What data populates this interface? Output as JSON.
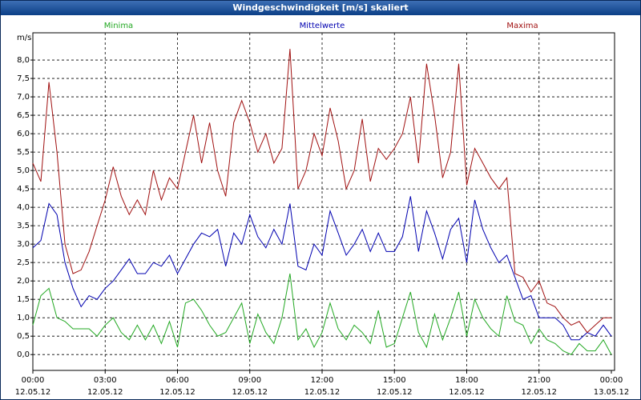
{
  "window": {
    "title": "Windgeschwindigkeit [m/s] skaliert"
  },
  "chart_data": {
    "type": "line",
    "y_unit": "m/s",
    "x": [
      "12.05.12 00:00",
      "12.05.12 00:20",
      "12.05.12 00:40",
      "12.05.12 01:00",
      "12.05.12 01:20",
      "12.05.12 01:40",
      "12.05.12 02:00",
      "12.05.12 02:20",
      "12.05.12 02:40",
      "12.05.12 03:00",
      "12.05.12 03:20",
      "12.05.12 03:40",
      "12.05.12 04:00",
      "12.05.12 04:20",
      "12.05.12 04:40",
      "12.05.12 05:00",
      "12.05.12 05:20",
      "12.05.12 05:40",
      "12.05.12 06:00",
      "12.05.12 06:20",
      "12.05.12 06:40",
      "12.05.12 07:00",
      "12.05.12 07:20",
      "12.05.12 07:40",
      "12.05.12 08:00",
      "12.05.12 08:20",
      "12.05.12 08:40",
      "12.05.12 09:00",
      "12.05.12 09:20",
      "12.05.12 09:40",
      "12.05.12 10:00",
      "12.05.12 10:20",
      "12.05.12 10:40",
      "12.05.12 11:00",
      "12.05.12 11:20",
      "12.05.12 11:40",
      "12.05.12 12:00",
      "12.05.12 12:20",
      "12.05.12 12:40",
      "12.05.12 13:00",
      "12.05.12 13:20",
      "12.05.12 13:40",
      "12.05.12 14:00",
      "12.05.12 14:20",
      "12.05.12 14:40",
      "12.05.12 15:00",
      "12.05.12 15:20",
      "12.05.12 15:40",
      "12.05.12 16:00",
      "12.05.12 16:20",
      "12.05.12 16:40",
      "12.05.12 17:00",
      "12.05.12 17:20",
      "12.05.12 17:40",
      "12.05.12 18:00",
      "12.05.12 18:20",
      "12.05.12 18:40",
      "12.05.12 19:00",
      "12.05.12 19:20",
      "12.05.12 19:40",
      "12.05.12 20:00",
      "12.05.12 20:20",
      "12.05.12 20:40",
      "12.05.12 21:00",
      "12.05.12 21:20",
      "12.05.12 21:40",
      "12.05.12 22:00",
      "12.05.12 22:20",
      "12.05.12 22:40",
      "12.05.12 23:00",
      "12.05.12 23:20",
      "12.05.12 23:40",
      "13.05.12 00:00"
    ],
    "series": [
      {
        "name": "Minima",
        "color": "#22a822",
        "values": [
          0.8,
          1.6,
          1.8,
          1.0,
          0.9,
          0.7,
          0.7,
          0.7,
          0.5,
          0.8,
          1.0,
          0.6,
          0.4,
          0.8,
          0.4,
          0.8,
          0.3,
          0.9,
          0.2,
          1.4,
          1.5,
          1.2,
          0.8,
          0.5,
          0.6,
          1.0,
          1.4,
          0.3,
          1.1,
          0.6,
          0.3,
          1.0,
          2.2,
          0.4,
          0.7,
          0.2,
          0.6,
          1.4,
          0.7,
          0.4,
          0.8,
          0.6,
          0.3,
          1.2,
          0.2,
          0.3,
          1.0,
          1.7,
          0.6,
          0.2,
          1.1,
          0.4,
          1.0,
          1.7,
          0.5,
          1.5,
          1.0,
          0.7,
          0.5,
          1.6,
          0.9,
          0.8,
          0.3,
          0.7,
          0.4,
          0.3,
          0.1,
          0.0,
          0.3,
          0.1,
          0.1,
          0.4,
          0.0
        ]
      },
      {
        "name": "Mittelwerte",
        "color": "#0000b0",
        "values": [
          2.9,
          3.1,
          4.1,
          3.8,
          2.5,
          1.8,
          1.3,
          1.6,
          1.5,
          1.8,
          2.0,
          2.3,
          2.6,
          2.2,
          2.2,
          2.5,
          2.4,
          2.7,
          2.2,
          2.6,
          3.0,
          3.3,
          3.2,
          3.4,
          2.4,
          3.3,
          3.0,
          3.8,
          3.2,
          2.9,
          3.4,
          3.0,
          4.1,
          2.4,
          2.3,
          3.0,
          2.7,
          3.9,
          3.3,
          2.7,
          3.0,
          3.4,
          2.8,
          3.3,
          2.8,
          2.8,
          3.2,
          4.3,
          2.8,
          3.9,
          3.3,
          2.6,
          3.4,
          3.7,
          2.5,
          4.2,
          3.4,
          2.9,
          2.5,
          2.7,
          2.1,
          1.5,
          1.6,
          1.0,
          1.0,
          1.0,
          0.8,
          0.4,
          0.4,
          0.6,
          0.5,
          0.8,
          0.5
        ]
      },
      {
        "name": "Maxima",
        "color": "#a01010",
        "values": [
          5.2,
          4.7,
          7.4,
          5.5,
          3.0,
          2.2,
          2.3,
          2.8,
          3.5,
          4.2,
          5.1,
          4.3,
          3.8,
          4.2,
          3.8,
          5.0,
          4.2,
          4.8,
          4.5,
          5.5,
          6.5,
          5.2,
          6.3,
          5.0,
          4.3,
          6.3,
          6.9,
          6.3,
          5.5,
          6.0,
          5.2,
          5.6,
          8.3,
          4.5,
          5.0,
          6.0,
          5.4,
          6.7,
          5.8,
          4.5,
          5.0,
          6.4,
          4.7,
          5.6,
          5.3,
          5.6,
          6.0,
          7.0,
          5.2,
          7.9,
          6.5,
          4.8,
          5.5,
          7.9,
          4.6,
          5.6,
          5.2,
          4.8,
          4.5,
          4.8,
          2.2,
          2.1,
          1.7,
          2.0,
          1.4,
          1.3,
          1.0,
          0.8,
          0.9,
          0.6,
          0.8,
          1.0,
          1.0
        ]
      }
    ],
    "xlim": [
      "12.05.12 00:00",
      "13.05.12 00:00"
    ],
    "xticks": [
      {
        "value": "12.05.12 00:00",
        "label": [
          "00:00",
          "12.05.12"
        ]
      },
      {
        "value": "12.05.12 03:00",
        "label": [
          "03:00",
          "12.05.12"
        ]
      },
      {
        "value": "12.05.12 06:00",
        "label": [
          "06:00",
          "12.05.12"
        ]
      },
      {
        "value": "12.05.12 09:00",
        "label": [
          "09:00",
          "12.05.12"
        ]
      },
      {
        "value": "12.05.12 12:00",
        "label": [
          "12:00",
          "12.05.12"
        ]
      },
      {
        "value": "12.05.12 15:00",
        "label": [
          "15:00",
          "12.05.12"
        ]
      },
      {
        "value": "12.05.12 18:00",
        "label": [
          "18:00",
          "12.05.12"
        ]
      },
      {
        "value": "12.05.12 21:00",
        "label": [
          "21:00",
          "12.05.12"
        ]
      },
      {
        "value": "13.05.12 00:00",
        "label": [
          "00:00",
          "13.05.12"
        ]
      }
    ],
    "ylim": [
      -0.43,
      8.74
    ],
    "yticks": [
      {
        "value": 0,
        "label": "0,0"
      },
      {
        "value": 0.5,
        "label": "0,5"
      },
      {
        "value": 1,
        "label": "1,0"
      },
      {
        "value": 1.5,
        "label": "1,5"
      },
      {
        "value": 2,
        "label": "2,0"
      },
      {
        "value": 2.5,
        "label": "2,5"
      },
      {
        "value": 3,
        "label": "3,0"
      },
      {
        "value": 3.5,
        "label": "3,5"
      },
      {
        "value": 4,
        "label": "4,0"
      },
      {
        "value": 4.5,
        "label": "4,5"
      },
      {
        "value": 5,
        "label": "5,0"
      },
      {
        "value": 5.5,
        "label": "5,5"
      },
      {
        "value": 6,
        "label": "6,0"
      },
      {
        "value": 6.5,
        "label": "6,5"
      },
      {
        "value": 7,
        "label": "7,0"
      },
      {
        "value": 7.5,
        "label": "7,5"
      },
      {
        "value": 8,
        "label": "8,0"
      }
    ],
    "grid": true
  }
}
